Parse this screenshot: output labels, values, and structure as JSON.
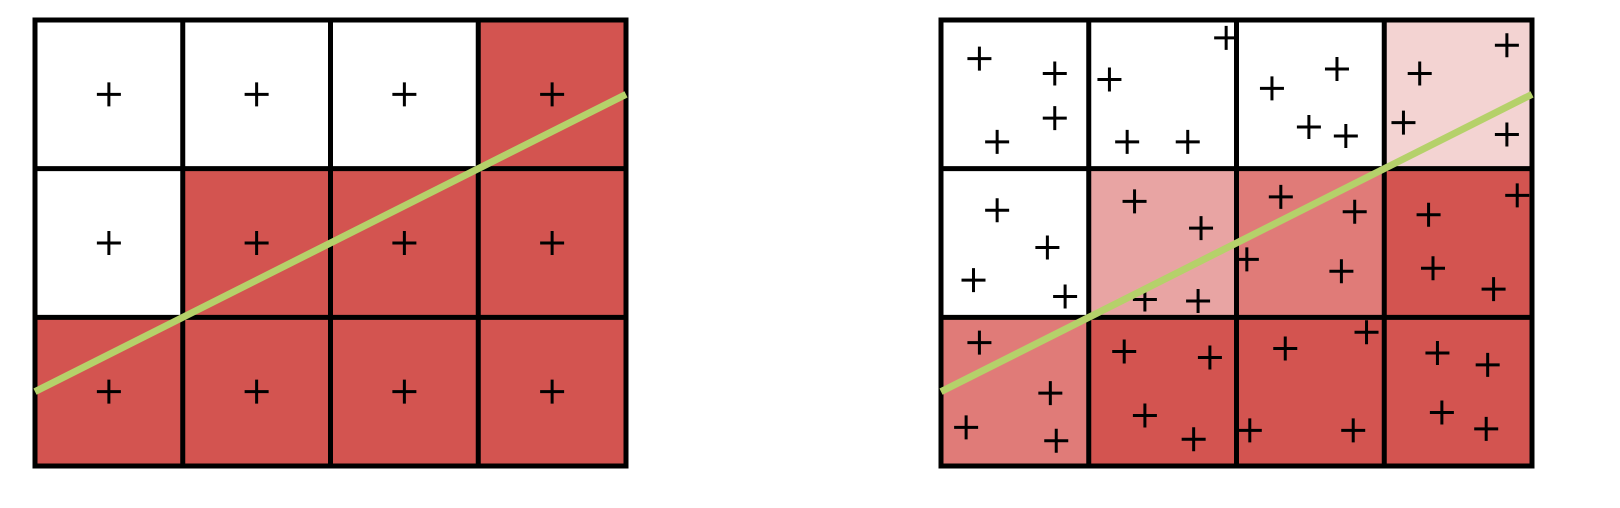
{
  "colors": {
    "background": "#ffffff",
    "grid_stroke": "#000000",
    "line": "#b5d16a",
    "marker": "#000000",
    "coverage_0": "#ffffff",
    "coverage_1": "#f3d3d2",
    "coverage_2": "#e8a4a3",
    "coverage_3": "#e07b78",
    "coverage_4": "#d35450"
  },
  "panels": [
    {
      "id": "single-sample",
      "rows": 3,
      "cols": 4,
      "cells": [
        {
          "row": 0,
          "col": 0,
          "fill": "coverage_0",
          "samples": [
            [
              0.5,
              0.5
            ]
          ]
        },
        {
          "row": 0,
          "col": 1,
          "fill": "coverage_0",
          "samples": [
            [
              0.5,
              0.5
            ]
          ]
        },
        {
          "row": 0,
          "col": 2,
          "fill": "coverage_0",
          "samples": [
            [
              0.5,
              0.5
            ]
          ]
        },
        {
          "row": 0,
          "col": 3,
          "fill": "coverage_4",
          "samples": [
            [
              0.5,
              0.5
            ]
          ]
        },
        {
          "row": 1,
          "col": 0,
          "fill": "coverage_0",
          "samples": [
            [
              0.5,
              0.5
            ]
          ]
        },
        {
          "row": 1,
          "col": 1,
          "fill": "coverage_4",
          "samples": [
            [
              0.5,
              0.5
            ]
          ]
        },
        {
          "row": 1,
          "col": 2,
          "fill": "coverage_4",
          "samples": [
            [
              0.5,
              0.5
            ]
          ]
        },
        {
          "row": 1,
          "col": 3,
          "fill": "coverage_4",
          "samples": [
            [
              0.5,
              0.5
            ]
          ]
        },
        {
          "row": 2,
          "col": 0,
          "fill": "coverage_4",
          "samples": [
            [
              0.5,
              0.5
            ]
          ]
        },
        {
          "row": 2,
          "col": 1,
          "fill": "coverage_4",
          "samples": [
            [
              0.5,
              0.5
            ]
          ]
        },
        {
          "row": 2,
          "col": 2,
          "fill": "coverage_4",
          "samples": [
            [
              0.5,
              0.5
            ]
          ]
        },
        {
          "row": 2,
          "col": 3,
          "fill": "coverage_4",
          "samples": [
            [
              0.5,
              0.5
            ]
          ]
        }
      ],
      "edge": {
        "start": [
          0.0,
          2.5
        ],
        "end": [
          4.0,
          0.5
        ]
      }
    },
    {
      "id": "multi-sample",
      "rows": 3,
      "cols": 4,
      "cells": [
        {
          "row": 0,
          "col": 0,
          "fill": "coverage_0",
          "samples": [
            [
              0.26,
              0.26
            ],
            [
              0.77,
              0.36
            ],
            [
              0.77,
              0.66
            ],
            [
              0.38,
              0.82
            ]
          ]
        },
        {
          "row": 0,
          "col": 1,
          "fill": "coverage_0",
          "samples": [
            [
              0.93,
              0.12
            ],
            [
              0.14,
              0.4
            ],
            [
              0.26,
              0.82
            ],
            [
              0.67,
              0.82
            ]
          ]
        },
        {
          "row": 0,
          "col": 2,
          "fill": "coverage_0",
          "samples": [
            [
              0.68,
              0.33
            ],
            [
              0.24,
              0.46
            ],
            [
              0.49,
              0.72
            ],
            [
              0.74,
              0.78
            ]
          ]
        },
        {
          "row": 0,
          "col": 3,
          "fill": "coverage_1",
          "samples": [
            [
              0.83,
              0.17
            ],
            [
              0.24,
              0.36
            ],
            [
              0.13,
              0.69
            ],
            [
              0.83,
              0.77
            ]
          ]
        },
        {
          "row": 1,
          "col": 0,
          "fill": "coverage_0",
          "samples": [
            [
              0.38,
              0.28
            ],
            [
              0.72,
              0.53
            ],
            [
              0.22,
              0.75
            ],
            [
              0.84,
              0.86
            ]
          ]
        },
        {
          "row": 1,
          "col": 1,
          "fill": "coverage_2",
          "samples": [
            [
              0.31,
              0.22
            ],
            [
              0.76,
              0.4
            ],
            [
              0.38,
              0.88
            ],
            [
              0.74,
              0.89
            ]
          ]
        },
        {
          "row": 1,
          "col": 2,
          "fill": "coverage_3",
          "samples": [
            [
              0.3,
              0.19
            ],
            [
              0.8,
              0.29
            ],
            [
              0.07,
              0.61
            ],
            [
              0.71,
              0.69
            ]
          ]
        },
        {
          "row": 1,
          "col": 3,
          "fill": "coverage_4",
          "samples": [
            [
              0.9,
              0.18
            ],
            [
              0.3,
              0.31
            ],
            [
              0.33,
              0.67
            ],
            [
              0.74,
              0.81
            ]
          ]
        },
        {
          "row": 2,
          "col": 0,
          "fill": "coverage_3",
          "samples": [
            [
              0.26,
              0.17
            ],
            [
              0.74,
              0.51
            ],
            [
              0.17,
              0.74
            ],
            [
              0.78,
              0.83
            ]
          ]
        },
        {
          "row": 2,
          "col": 1,
          "fill": "coverage_4",
          "samples": [
            [
              0.24,
              0.23
            ],
            [
              0.82,
              0.27
            ],
            [
              0.38,
              0.66
            ],
            [
              0.71,
              0.82
            ]
          ]
        },
        {
          "row": 2,
          "col": 2,
          "fill": "coverage_4",
          "samples": [
            [
              0.88,
              0.1
            ],
            [
              0.33,
              0.21
            ],
            [
              0.09,
              0.76
            ],
            [
              0.79,
              0.76
            ]
          ]
        },
        {
          "row": 2,
          "col": 3,
          "fill": "coverage_4",
          "samples": [
            [
              0.36,
              0.24
            ],
            [
              0.7,
              0.32
            ],
            [
              0.39,
              0.64
            ],
            [
              0.69,
              0.75
            ]
          ]
        }
      ],
      "edge": {
        "start": [
          0.0,
          2.5
        ],
        "end": [
          4.0,
          0.5
        ]
      }
    }
  ]
}
